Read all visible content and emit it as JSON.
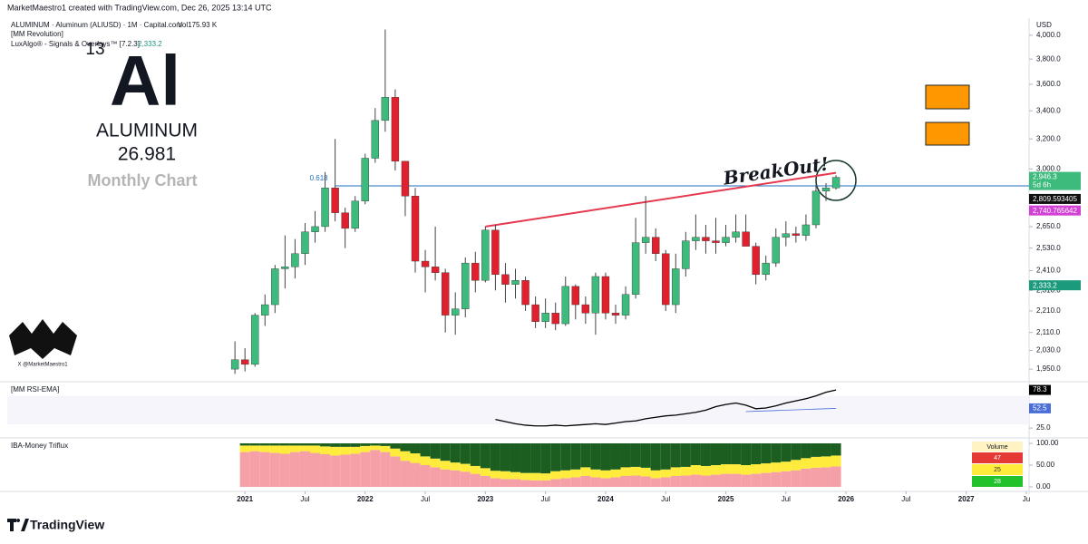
{
  "page": {
    "credit": "MarketMaestro1 created with TradingView.com, Dec 26, 2025 13:14 UTC",
    "symbol": "ALUMINUM · Aluminum (ALIUSD) · 1M · Capital.com",
    "volume": "Vol175.93 K",
    "indicator1": "[MM Revolution]",
    "indicator2": "LuxAlgo® - Signals & Overlays™ [7.2.3]",
    "indicator2_value": "2,333.2",
    "currency": "USD",
    "brand": "TradingView"
  },
  "overlay": {
    "number": "13",
    "symbol": "Al",
    "name": "ALUMINUM",
    "mass": "26.981",
    "caption": "Monthly Chart",
    "annotation": "BreakOut!",
    "watermark": "X @MarketMaestro1"
  },
  "chart_data": [
    {
      "type": "candlestick",
      "x": [
        "2020-12",
        "2021-01",
        "2021-02",
        "2021-03",
        "2021-04",
        "2021-05",
        "2021-06",
        "2021-07",
        "2021-08",
        "2021-09",
        "2021-10",
        "2021-11",
        "2021-12",
        "2022-01",
        "2022-02",
        "2022-03",
        "2022-04",
        "2022-05",
        "2022-06",
        "2022-07",
        "2022-08",
        "2022-09",
        "2022-10",
        "2022-11",
        "2022-12",
        "2023-01",
        "2023-02",
        "2023-03",
        "2023-04",
        "2023-05",
        "2023-06",
        "2023-07",
        "2023-08",
        "2023-09",
        "2023-10",
        "2023-11",
        "2023-12",
        "2024-01",
        "2024-02",
        "2024-03",
        "2024-04",
        "2024-05",
        "2024-06",
        "2024-07",
        "2024-08",
        "2024-09",
        "2024-10",
        "2024-11",
        "2024-12",
        "2025-01",
        "2025-02",
        "2025-03",
        "2025-04",
        "2025-05",
        "2025-06",
        "2025-07",
        "2025-08",
        "2025-09",
        "2025-10",
        "2025-11",
        "2025-12"
      ],
      "open": [
        1950,
        1990,
        1970,
        2190,
        2240,
        2420,
        2430,
        2500,
        2620,
        2650,
        2880,
        2730,
        2640,
        2800,
        3070,
        3330,
        3500,
        3050,
        2830,
        2460,
        2430,
        2400,
        2190,
        2220,
        2450,
        2360,
        2630,
        2390,
        2340,
        2360,
        2240,
        2160,
        2200,
        2150,
        2330,
        2240,
        2200,
        2380,
        2200,
        2190,
        2290,
        2560,
        2590,
        2500,
        2240,
        2420,
        2570,
        2590,
        2570,
        2560,
        2590,
        2620,
        2540,
        2390,
        2450,
        2590,
        2610,
        2600,
        2660,
        2860,
        2880
      ],
      "high": [
        2070,
        2040,
        2200,
        2290,
        2440,
        2600,
        2580,
        2670,
        2740,
        2980,
        3200,
        2760,
        2830,
        3100,
        3420,
        4050,
        3560,
        3050,
        2880,
        2520,
        2650,
        2420,
        2300,
        2480,
        2510,
        2650,
        2660,
        2450,
        2420,
        2380,
        2280,
        2270,
        2250,
        2380,
        2340,
        2280,
        2400,
        2400,
        2240,
        2330,
        2700,
        2830,
        2640,
        2520,
        2500,
        2620,
        2720,
        2660,
        2700,
        2660,
        2720,
        2720,
        2560,
        2490,
        2640,
        2680,
        2650,
        2720,
        2900,
        2910,
        2960
      ],
      "low": [
        1930,
        1940,
        1960,
        2140,
        2200,
        2320,
        2370,
        2440,
        2560,
        2620,
        2680,
        2530,
        2620,
        2780,
        3040,
        3250,
        2990,
        2710,
        2400,
        2300,
        2360,
        2110,
        2100,
        2180,
        2300,
        2350,
        2310,
        2250,
        2270,
        2210,
        2130,
        2130,
        2120,
        2140,
        2170,
        2150,
        2100,
        2170,
        2150,
        2170,
        2270,
        2500,
        2460,
        2210,
        2200,
        2380,
        2520,
        2500,
        2500,
        2540,
        2560,
        2540,
        2340,
        2360,
        2430,
        2540,
        2560,
        2570,
        2640,
        2800,
        2870
      ],
      "close": [
        1990,
        1970,
        2190,
        2240,
        2420,
        2430,
        2500,
        2620,
        2650,
        2880,
        2730,
        2640,
        2800,
        3070,
        3330,
        3500,
        3050,
        2830,
        2460,
        2430,
        2400,
        2190,
        2220,
        2450,
        2360,
        2630,
        2390,
        2340,
        2360,
        2240,
        2160,
        2200,
        2150,
        2330,
        2240,
        2200,
        2380,
        2200,
        2190,
        2290,
        2560,
        2590,
        2500,
        2240,
        2420,
        2570,
        2590,
        2570,
        2560,
        2590,
        2620,
        2540,
        2390,
        2450,
        2590,
        2610,
        2600,
        2660,
        2860,
        2880,
        2946.3
      ],
      "up_color": "#3dbb7d",
      "down_color": "#e0202c",
      "log_scale": true,
      "grid": false,
      "ylim": [
        1909,
        4070
      ],
      "yticks": [
        {
          "value": 1950,
          "label": "1,950.0"
        },
        {
          "value": 2030,
          "label": "2,030.0"
        },
        {
          "value": 2110,
          "label": "2,110.0"
        },
        {
          "value": 2210,
          "label": "2,210.0"
        },
        {
          "value": 2310,
          "label": "2,310.0"
        },
        {
          "value": 2410,
          "label": "2,410.0"
        },
        {
          "value": 2530,
          "label": "2,530.0"
        },
        {
          "value": 2650,
          "label": "2,650.0"
        },
        {
          "value": 3000,
          "label": "3,000.0"
        },
        {
          "value": 3200,
          "label": "3,200.0"
        },
        {
          "value": 3400,
          "label": "3,400.0"
        },
        {
          "value": 3600,
          "label": "3,600.0"
        },
        {
          "value": 3800,
          "label": "3,800.0"
        },
        {
          "value": 4000,
          "label": "4,000.0"
        }
      ],
      "xlim": [
        "2019-01",
        "2027-07"
      ],
      "xticks": [
        {
          "value": "2021-01",
          "label": "2021"
        },
        {
          "value": "2021-07",
          "label": "Jul"
        },
        {
          "value": "2022-01",
          "label": "2022"
        },
        {
          "value": "2022-07",
          "label": "Jul"
        },
        {
          "value": "2023-01",
          "label": "2023"
        },
        {
          "value": "2023-07",
          "label": "Jul"
        },
        {
          "value": "2024-01",
          "label": "2024"
        },
        {
          "value": "2024-07",
          "label": "Jul"
        },
        {
          "value": "2025-01",
          "label": "2025"
        },
        {
          "value": "2025-07",
          "label": "Jul"
        },
        {
          "value": "2026-01",
          "label": "2026"
        },
        {
          "value": "2026-07",
          "label": "Jul"
        },
        {
          "value": "2027-01",
          "label": "2027"
        },
        {
          "value": "2027-07",
          "label": "Ju"
        }
      ],
      "fib": {
        "label": "0.618",
        "value": 2893,
        "start": "2021-10",
        "color": "#1e6fbf"
      },
      "trendline": {
        "x": [
          "2023-01",
          "2025-12"
        ],
        "values": [
          2650,
          2975
        ],
        "color": "#e53950"
      },
      "price_labels": [
        {
          "value": 2946.3,
          "label": "2,946.3",
          "countdown": "5d 6h",
          "color": "#3dbb7d"
        },
        {
          "value": 2809.593405,
          "label": "2,809.593405",
          "color": "#111111"
        },
        {
          "value": 2740.765642,
          "label": "2,740.765642",
          "color": "#d340d6"
        },
        {
          "value": 2333.2,
          "label": "2,333.2",
          "color": "#1c9a7c"
        }
      ]
    },
    {
      "type": "line",
      "title": "[MM RSI-EMA]",
      "series": [
        {
          "color": "#000000",
          "values": [
            null,
            null,
            null,
            null,
            null,
            null,
            null,
            null,
            null,
            null,
            null,
            null,
            null,
            null,
            null,
            null,
            null,
            null,
            null,
            null,
            null,
            null,
            null,
            null,
            null,
            null,
            37,
            34,
            31,
            29,
            28,
            28,
            29,
            28,
            29,
            30,
            31,
            30,
            32,
            34,
            35,
            38,
            40,
            42,
            43,
            45,
            47,
            50,
            55,
            58,
            60,
            57,
            52,
            53,
            56,
            60,
            63,
            66,
            70,
            75,
            78.3
          ]
        },
        {
          "color": "#4a6fd8",
          "values": [
            null,
            null,
            null,
            null,
            null,
            null,
            null,
            null,
            null,
            null,
            null,
            null,
            null,
            null,
            null,
            null,
            null,
            null,
            null,
            null,
            null,
            null,
            null,
            null,
            null,
            null,
            null,
            null,
            null,
            null,
            null,
            null,
            null,
            null,
            null,
            null,
            null,
            null,
            null,
            null,
            null,
            null,
            null,
            null,
            null,
            null,
            null,
            null,
            null,
            null,
            null,
            48,
            48.5,
            49,
            49.5,
            50,
            50.5,
            51,
            51.5,
            52,
            52.5
          ]
        }
      ],
      "ylim": [
        15,
        86
      ],
      "yticks": [
        {
          "value": 25,
          "label": "25.0"
        }
      ]
    },
    {
      "type": "stacked-bar",
      "title": "IBA-Money Triflux",
      "legend_title": "Volume",
      "series": [
        {
          "color": "#f4a0a6",
          "values": [
            null,
            80,
            82,
            80,
            78,
            76,
            80,
            82,
            78,
            75,
            72,
            74,
            76,
            80,
            85,
            80,
            70,
            60,
            55,
            50,
            45,
            40,
            38,
            35,
            30,
            25,
            20,
            18,
            18,
            16,
            15,
            15,
            18,
            20,
            22,
            25,
            22,
            20,
            22,
            25,
            26,
            24,
            20,
            22,
            25,
            26,
            28,
            26,
            28,
            30,
            30,
            28,
            30,
            32,
            34,
            36,
            38,
            42,
            44,
            45,
            47
          ]
        },
        {
          "color": "#ffeb3b",
          "values": [
            null,
            15,
            13,
            15,
            17,
            19,
            15,
            13,
            17,
            18,
            20,
            18,
            16,
            14,
            10,
            14,
            18,
            22,
            22,
            20,
            20,
            20,
            18,
            18,
            18,
            18,
            17,
            18,
            16,
            16,
            17,
            16,
            18,
            18,
            18,
            20,
            18,
            18,
            18,
            20,
            20,
            20,
            18,
            18,
            20,
            20,
            22,
            22,
            22,
            22,
            22,
            22,
            22,
            22,
            22,
            22,
            24,
            24,
            25,
            25,
            25
          ]
        },
        {
          "color": "#1b5e20",
          "values": [
            null,
            5,
            5,
            5,
            5,
            5,
            5,
            5,
            5,
            7,
            8,
            8,
            8,
            6,
            5,
            6,
            12,
            18,
            23,
            30,
            35,
            40,
            44,
            47,
            52,
            57,
            63,
            64,
            66,
            68,
            68,
            69,
            64,
            62,
            60,
            55,
            60,
            62,
            60,
            55,
            54,
            56,
            62,
            60,
            55,
            54,
            50,
            52,
            50,
            48,
            48,
            50,
            48,
            46,
            44,
            42,
            38,
            34,
            31,
            30,
            28
          ]
        }
      ],
      "legend_colors": [
        "#e53935",
        "#ffeb3b",
        "#22c22c"
      ],
      "ylim": [
        0,
        100
      ],
      "yticks": [
        {
          "value": 0,
          "label": "0.00"
        },
        {
          "value": 50,
          "label": "50.00"
        },
        {
          "value": 100,
          "label": "100.00"
        }
      ]
    }
  ]
}
